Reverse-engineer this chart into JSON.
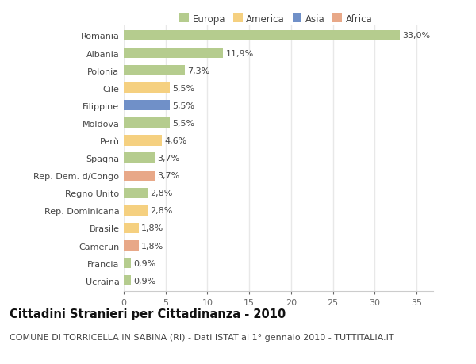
{
  "countries": [
    "Romania",
    "Albania",
    "Polonia",
    "Cile",
    "Filippine",
    "Moldova",
    "Perù",
    "Spagna",
    "Rep. Dem. d/Congo",
    "Regno Unito",
    "Rep. Dominicana",
    "Brasile",
    "Camerun",
    "Francia",
    "Ucraina"
  ],
  "values": [
    33.0,
    11.9,
    7.3,
    5.5,
    5.5,
    5.5,
    4.6,
    3.7,
    3.7,
    2.8,
    2.8,
    1.8,
    1.8,
    0.9,
    0.9
  ],
  "labels": [
    "33,0%",
    "11,9%",
    "7,3%",
    "5,5%",
    "5,5%",
    "5,5%",
    "4,6%",
    "3,7%",
    "3,7%",
    "2,8%",
    "2,8%",
    "1,8%",
    "1,8%",
    "0,9%",
    "0,9%"
  ],
  "colors": [
    "#b5cc8e",
    "#b5cc8e",
    "#b5cc8e",
    "#f5d080",
    "#7090c8",
    "#b5cc8e",
    "#f5d080",
    "#b5cc8e",
    "#e8a888",
    "#b5cc8e",
    "#f5d080",
    "#f5d080",
    "#e8a888",
    "#b5cc8e",
    "#b5cc8e"
  ],
  "legend_labels": [
    "Europa",
    "America",
    "Asia",
    "Africa"
  ],
  "legend_colors": [
    "#b5cc8e",
    "#f5d080",
    "#7090c8",
    "#e8a888"
  ],
  "title": "Cittadini Stranieri per Cittadinanza - 2010",
  "subtitle": "COMUNE DI TORRICELLA IN SABINA (RI) - Dati ISTAT al 1° gennaio 2010 - TUTTITALIA.IT",
  "xlim": [
    0,
    37
  ],
  "xticks": [
    0,
    5,
    10,
    15,
    20,
    25,
    30,
    35
  ],
  "background_color": "#ffffff",
  "grid_color": "#e8e8e8",
  "bar_height": 0.6,
  "title_fontsize": 10.5,
  "subtitle_fontsize": 8,
  "label_fontsize": 8,
  "tick_fontsize": 8,
  "legend_fontsize": 8.5
}
